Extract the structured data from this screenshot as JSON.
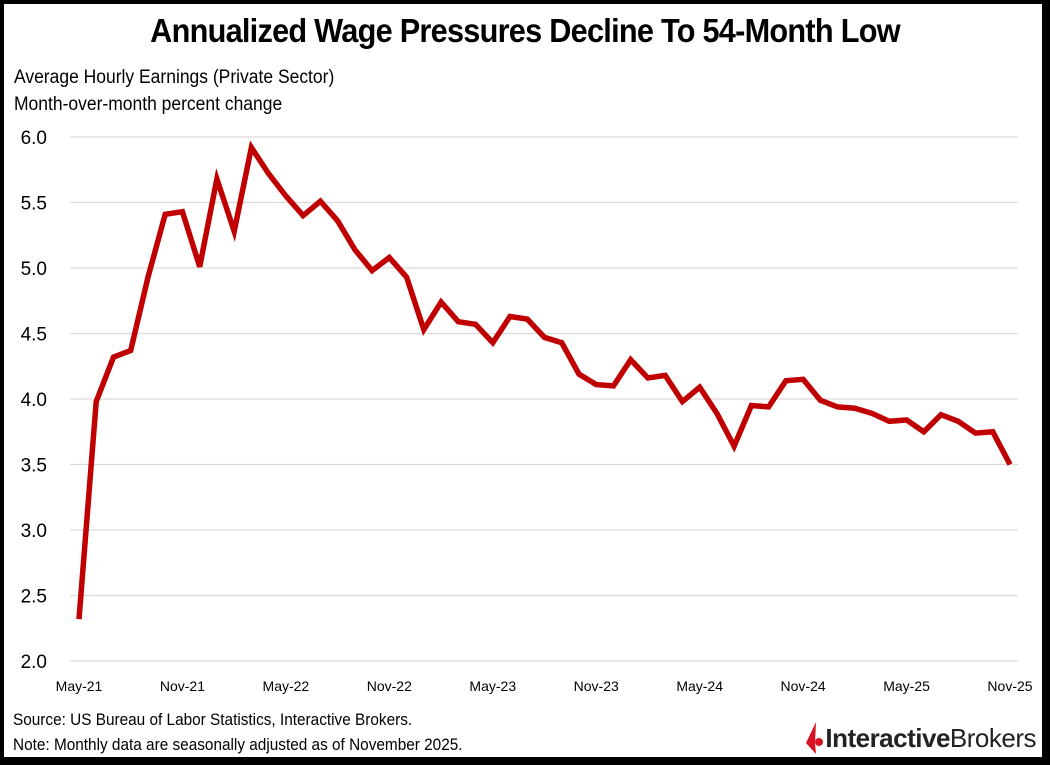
{
  "chart_data": {
    "type": "line",
    "title": "Annualized Wage Pressures Decline To 54-Month Low",
    "subtitle_lines": [
      "Average Hourly Earnings (Private Sector)",
      "Month-over-month percent change"
    ],
    "xlabel": "",
    "ylabel": "",
    "ylim": [
      2.0,
      6.0
    ],
    "y_ticks": [
      "2.0",
      "2.5",
      "3.0",
      "3.5",
      "4.0",
      "4.5",
      "5.0",
      "5.5",
      "6.0"
    ],
    "x_ticks": [
      "May-21",
      "Nov-21",
      "May-22",
      "Nov-22",
      "May-23",
      "Nov-23",
      "May-24",
      "Nov-24",
      "May-25",
      "Nov-25"
    ],
    "x_tick_interval_months": 6,
    "grid": true,
    "legend": "none",
    "series": [
      {
        "name": "Average Hourly Earnings (Private Sector)",
        "color": "#C00000",
        "start": "May-21",
        "values": [
          2.32,
          3.98,
          4.32,
          4.37,
          4.93,
          5.41,
          5.43,
          5.01,
          5.68,
          5.28,
          5.92,
          5.72,
          5.55,
          5.4,
          5.51,
          5.36,
          5.14,
          4.98,
          5.08,
          4.93,
          4.53,
          4.74,
          4.59,
          4.57,
          4.43,
          4.63,
          4.61,
          4.47,
          4.43,
          4.19,
          4.11,
          4.1,
          4.3,
          4.16,
          4.18,
          3.98,
          4.09,
          3.89,
          3.64,
          3.95,
          3.94,
          4.14,
          4.15,
          3.99,
          3.94,
          3.93,
          3.89,
          3.83,
          3.84,
          3.75,
          3.88,
          3.83,
          3.74,
          3.75,
          3.5
        ]
      }
    ]
  },
  "footer": {
    "source": "Source: US Bureau of Labor Statistics, Interactive Brokers.",
    "note": "Note: Monthly data are seasonally adjusted as of November  2025."
  },
  "logo": {
    "part1": "Interactive",
    "part2": "Brokers",
    "color": "#D81222"
  }
}
